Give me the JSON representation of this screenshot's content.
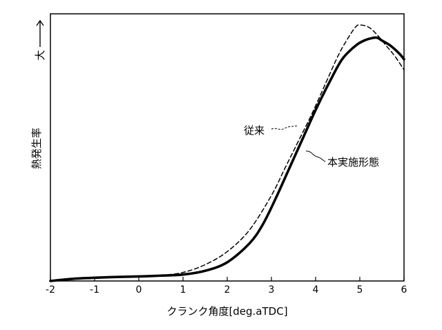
{
  "chart_data": {
    "type": "line",
    "title": "",
    "xlabel": "クランク角度[deg.aTDC]",
    "ylabel": "熱発生率",
    "y_direction_label": "大",
    "xlim": [
      -2,
      6
    ],
    "ylim": [
      0,
      1
    ],
    "x_ticks": [
      "-2",
      "-1",
      "0",
      "1",
      "2",
      "3",
      "4",
      "5",
      "6"
    ],
    "y_ticks": [],
    "grid": false,
    "legend": "inline annotations",
    "series": [
      {
        "name": "従来",
        "style": "dashed",
        "color": "#000000",
        "x": [
          -2,
          -1.5,
          -1,
          -0.5,
          0,
          0.5,
          1,
          1.5,
          2,
          2.5,
          3,
          3.3,
          3.6,
          3.9,
          4.2,
          4.5,
          4.7,
          4.9,
          5.0,
          5.2,
          5.4,
          5.6,
          5.8,
          6.0
        ],
        "y": [
          0.0,
          0.008,
          0.013,
          0.016,
          0.018,
          0.021,
          0.032,
          0.061,
          0.11,
          0.19,
          0.32,
          0.42,
          0.52,
          0.62,
          0.73,
          0.84,
          0.9,
          0.95,
          0.958,
          0.95,
          0.92,
          0.88,
          0.84,
          0.79
        ]
      },
      {
        "name": "本実施形態",
        "style": "solid",
        "color": "#000000",
        "x": [
          -2,
          -1.5,
          -1,
          -0.5,
          0,
          0.5,
          1,
          1.5,
          2,
          2.5,
          2.8,
          3.1,
          3.4,
          3.7,
          4.0,
          4.3,
          4.6,
          4.9,
          5.1,
          5.3,
          5.4,
          5.5,
          5.7,
          5.9,
          6.0
        ],
        "y": [
          0.0,
          0.008,
          0.012,
          0.015,
          0.017,
          0.02,
          0.024,
          0.038,
          0.07,
          0.14,
          0.21,
          0.31,
          0.42,
          0.53,
          0.64,
          0.74,
          0.83,
          0.88,
          0.9,
          0.91,
          0.91,
          0.9,
          0.88,
          0.85,
          0.83
        ]
      }
    ],
    "annotations": [
      {
        "text": "従来",
        "series": "従来"
      },
      {
        "text": "本実施形態",
        "series": "本実施形態"
      }
    ]
  }
}
